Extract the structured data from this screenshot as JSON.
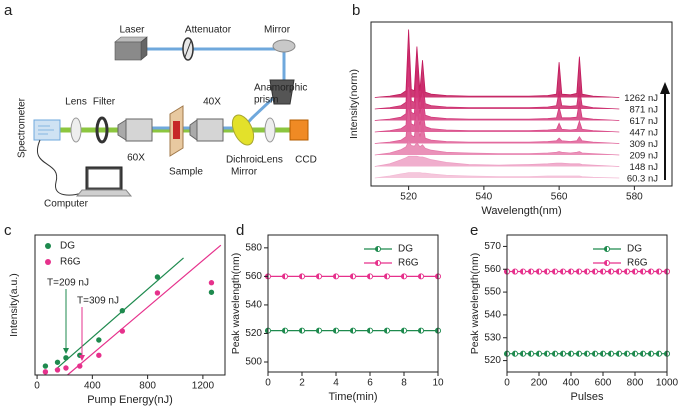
{
  "panel_labels": [
    "a",
    "b",
    "c",
    "d",
    "e"
  ],
  "diagram": {
    "labels": [
      "Laser",
      "Attenuator",
      "Mirror",
      [
        "Anamorphic",
        "prism"
      ],
      "Spectrometer",
      "Lens",
      "Filter",
      "60X",
      "Sample",
      "40X",
      [
        "Dichroic",
        "Mirror"
      ],
      "Lens",
      "CCD",
      "Computer"
    ]
  },
  "chart_data": [
    {
      "type": "waterfall",
      "xlabel": "Wavelength(nm)",
      "ylabel": "Intensity(norm)",
      "x": [
        511,
        515,
        518,
        519.3,
        520,
        520.7,
        521.5,
        522.2,
        523,
        523.7,
        524.4,
        526,
        530,
        536,
        544,
        552,
        557,
        559.3,
        560,
        560.7,
        563,
        564.7,
        565.4,
        566.1,
        569,
        576
      ],
      "xlim": [
        510,
        590
      ],
      "xticks": [
        520,
        540,
        560,
        580
      ],
      "series": [
        {
          "name": "1262 nJ",
          "color": "#c2185b",
          "values": [
            0,
            0.02,
            0.05,
            0.1,
            1.0,
            0.12,
            0.1,
            0.75,
            0.1,
            0.55,
            0.08,
            0.05,
            0.03,
            0.02,
            0.02,
            0.02,
            0.03,
            0.05,
            0.52,
            0.05,
            0.04,
            0.06,
            0.6,
            0.05,
            0.02,
            0
          ]
        },
        {
          "name": "871 nJ",
          "color": "#cc2a6c",
          "values": [
            0,
            0.02,
            0.05,
            0.1,
            0.88,
            0.12,
            0.1,
            0.65,
            0.1,
            0.45,
            0.08,
            0.05,
            0.03,
            0.02,
            0.02,
            0.02,
            0.03,
            0.05,
            0.26,
            0.05,
            0.04,
            0.05,
            0.33,
            0.05,
            0.02,
            0
          ]
        },
        {
          "name": "617 nJ",
          "color": "#d3387a",
          "values": [
            0,
            0.02,
            0.05,
            0.1,
            0.78,
            0.12,
            0.1,
            0.6,
            0.1,
            0.4,
            0.08,
            0.05,
            0.03,
            0.02,
            0.02,
            0.02,
            0.03,
            0.04,
            0.2,
            0.04,
            0.04,
            0.05,
            0.28,
            0.04,
            0.02,
            0
          ]
        },
        {
          "name": "447 nJ",
          "color": "#d94a88",
          "values": [
            0,
            0.02,
            0.05,
            0.1,
            0.66,
            0.12,
            0.1,
            0.5,
            0.1,
            0.35,
            0.08,
            0.05,
            0.03,
            0.02,
            0.02,
            0.02,
            0.03,
            0.04,
            0.13,
            0.04,
            0.03,
            0.04,
            0.16,
            0.04,
            0.02,
            0
          ]
        },
        {
          "name": "309 nJ",
          "color": "#df5e97",
          "values": [
            0,
            0.02,
            0.05,
            0.1,
            0.5,
            0.12,
            0.1,
            0.4,
            0.1,
            0.3,
            0.08,
            0.05,
            0.03,
            0.02,
            0.02,
            0.02,
            0.03,
            0.04,
            0.08,
            0.04,
            0.03,
            0.04,
            0.1,
            0.04,
            0.02,
            0
          ]
        },
        {
          "name": "209 nJ",
          "color": "#e67fad",
          "values": [
            0,
            0.03,
            0.08,
            0.12,
            0.2,
            0.14,
            0.13,
            0.18,
            0.12,
            0.15,
            0.1,
            0.07,
            0.04,
            0.03,
            0.02,
            0.02,
            0.03,
            0.04,
            0.05,
            0.04,
            0.03,
            0.04,
            0.05,
            0.03,
            0.02,
            0
          ]
        },
        {
          "name": "148 nJ",
          "color": "#eda0c4",
          "values": [
            0,
            0.04,
            0.1,
            0.13,
            0.15,
            0.15,
            0.15,
            0.15,
            0.14,
            0.14,
            0.13,
            0.1,
            0.06,
            0.03,
            0.02,
            0.03,
            0.04,
            0.05,
            0.05,
            0.05,
            0.04,
            0.04,
            0.04,
            0.03,
            0.02,
            0
          ]
        },
        {
          "name": "60.3 nJ",
          "color": "#f3bdd6",
          "values": [
            0,
            0.03,
            0.06,
            0.07,
            0.08,
            0.08,
            0.08,
            0.08,
            0.08,
            0.07,
            0.07,
            0.06,
            0.04,
            0.03,
            0.02,
            0.02,
            0.03,
            0.03,
            0.03,
            0.03,
            0.03,
            0.03,
            0.03,
            0.02,
            0.01,
            0
          ]
        }
      ]
    },
    {
      "type": "scatter",
      "xlabel": "Pump Energy(nJ)",
      "ylabel": "Intensity(a.u.)",
      "x": [
        60.3,
        148,
        209,
        309,
        447,
        617,
        871,
        1262
      ],
      "xlim": [
        -15,
        1360
      ],
      "xticks": [
        0,
        400,
        800,
        1200
      ],
      "ylim": [
        0,
        22
      ],
      "series": [
        {
          "name": "DG",
          "color": "#1e8a4e",
          "values": [
            1.4,
            2.0,
            2.7,
            3.1,
            5.5,
            10.1,
            15.4,
            13.0
          ],
          "fit_x": [
            130,
            1060
          ],
          "fit_values": [
            0.8,
            18.4
          ]
        },
        {
          "name": "R6G",
          "color": "#e6318c",
          "values": [
            0.5,
            0.8,
            1.1,
            1.4,
            3.1,
            6.9,
            12.9,
            14.5
          ],
          "fit_x": [
            220,
            1330
          ],
          "fit_values": [
            0,
            20.4
          ]
        }
      ],
      "annotations": [
        "T=209 nJ",
        "T=309 nJ"
      ]
    },
    {
      "type": "line",
      "xlabel": "Time(min)",
      "ylabel": "Peak wavelength(nm)",
      "x": [
        0,
        1,
        2,
        3,
        4,
        5,
        6,
        7,
        8,
        9,
        10
      ],
      "xlim": [
        0,
        10
      ],
      "xticks": [
        0,
        2,
        4,
        6,
        8,
        10
      ],
      "ylim": [
        493,
        589
      ],
      "yticks": [
        500,
        520,
        540,
        560,
        580
      ],
      "series": [
        {
          "name": "DG",
          "color": "#1e8a4e",
          "values": [
            522,
            522,
            522,
            522,
            522,
            522,
            522,
            522,
            522,
            522,
            522
          ]
        },
        {
          "name": "R6G",
          "color": "#e6318c",
          "values": [
            560,
            560,
            560,
            560,
            560,
            560,
            560,
            560,
            560,
            560,
            560
          ]
        }
      ]
    },
    {
      "type": "line",
      "xlabel": "Pulses",
      "ylabel": "Peak wavelength(nm)",
      "x": [
        0,
        50,
        100,
        150,
        200,
        250,
        300,
        350,
        400,
        450,
        500,
        550,
        600,
        650,
        700,
        750,
        800,
        850,
        900,
        950,
        1000
      ],
      "xlim": [
        0,
        1000
      ],
      "xticks": [
        0,
        200,
        400,
        600,
        800,
        1000
      ],
      "ylim": [
        515,
        575
      ],
      "yticks": [
        520,
        530,
        540,
        550,
        560,
        570
      ],
      "series": [
        {
          "name": "DG",
          "color": "#1e8a4e",
          "values": [
            523,
            523,
            523,
            523,
            523,
            523,
            523,
            523,
            523,
            523,
            523,
            523,
            523,
            523,
            523,
            523,
            523,
            523,
            523,
            523,
            523
          ]
        },
        {
          "name": "R6G",
          "color": "#e6318c",
          "values": [
            559,
            559,
            559,
            559,
            559,
            559,
            559,
            559,
            559,
            559,
            559,
            559,
            559,
            559,
            559,
            559,
            559,
            559,
            559,
            559,
            559
          ]
        }
      ]
    }
  ]
}
